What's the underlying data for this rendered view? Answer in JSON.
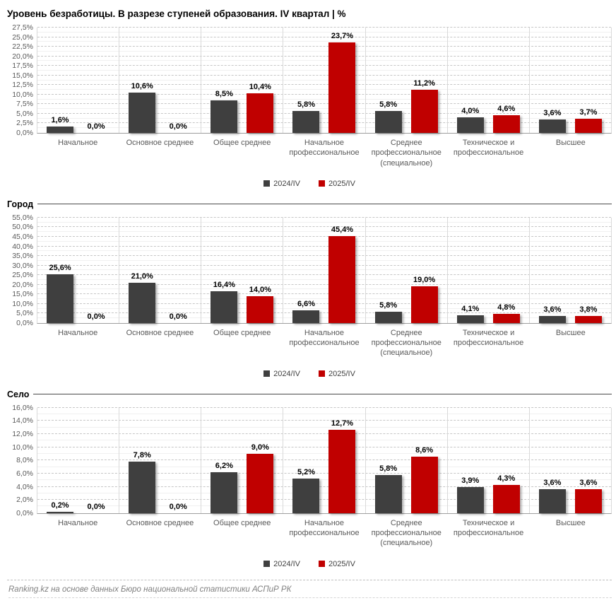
{
  "title": "Уровень безработицы. В разрезе ступеней образования. IV квартал | %",
  "footer": "Ranking.kz на основе данных Бюро национальной статистики АСПиР РК",
  "colors": {
    "series_2024": "#3f3f3f",
    "series_2025": "#c00000"
  },
  "chart_data": [
    {
      "type": "bar",
      "title": "",
      "categories": [
        "Начальное",
        "Основное среднее",
        "Общее среднее",
        "Начальное профессиональное",
        "Среднее профессиональное (специальное)",
        "Техническое и профессиональное",
        "Высшее"
      ],
      "series": [
        {
          "name": "2024/IV",
          "color": "#3f3f3f",
          "values": [
            1.6,
            10.6,
            8.5,
            5.8,
            5.8,
            4.0,
            3.6
          ]
        },
        {
          "name": "2025/IV",
          "color": "#c00000",
          "values": [
            0.0,
            0.0,
            10.4,
            23.7,
            11.2,
            4.6,
            3.7
          ]
        }
      ],
      "xlabel": "",
      "ylabel": "",
      "ylim": [
        0,
        27.5
      ],
      "ystep": 2.5,
      "grid": true,
      "legend_position": "bottom"
    },
    {
      "type": "bar",
      "title": "Город",
      "categories": [
        "Начальное",
        "Основное среднее",
        "Общее среднее",
        "Начальное профессиональное",
        "Среднее профессиональное (специальное)",
        "Техническое и профессиональное",
        "Высшее"
      ],
      "series": [
        {
          "name": "2024/IV",
          "color": "#3f3f3f",
          "values": [
            25.6,
            21.0,
            16.4,
            6.6,
            5.8,
            4.1,
            3.6
          ]
        },
        {
          "name": "2025/IV",
          "color": "#c00000",
          "values": [
            0.0,
            0.0,
            14.0,
            45.4,
            19.0,
            4.8,
            3.8
          ]
        }
      ],
      "xlabel": "",
      "ylabel": "",
      "ylim": [
        0,
        55.0
      ],
      "ystep": 5.0,
      "grid": true,
      "legend_position": "bottom"
    },
    {
      "type": "bar",
      "title": "Село",
      "categories": [
        "Начальное",
        "Основное среднее",
        "Общее среднее",
        "Начальное профессиональное",
        "Среднее профессиональное (специальное)",
        "Техническое и профессиональное",
        "Высшее"
      ],
      "series": [
        {
          "name": "2024/IV",
          "color": "#3f3f3f",
          "values": [
            0.2,
            7.8,
            6.2,
            5.2,
            5.8,
            3.9,
            3.6
          ]
        },
        {
          "name": "2025/IV",
          "color": "#c00000",
          "values": [
            0.0,
            0.0,
            9.0,
            12.7,
            8.6,
            4.3,
            3.6
          ]
        }
      ],
      "xlabel": "",
      "ylabel": "",
      "ylim": [
        0,
        16.0
      ],
      "ystep": 2.0,
      "grid": true,
      "legend_position": "bottom"
    }
  ]
}
